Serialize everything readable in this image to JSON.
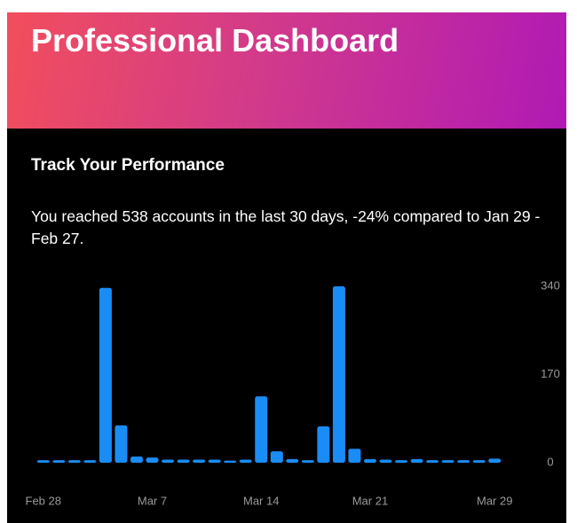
{
  "header": {
    "title": "Professional Dashboard"
  },
  "section": {
    "title": "Track Your Performance",
    "summary": "You reached 538 accounts in the last 30 days, -24% compared to Jan 29 - Feb 27."
  },
  "chart_data": {
    "type": "bar",
    "categories": [
      "Feb 28",
      null,
      null,
      null,
      null,
      null,
      null,
      "Mar 7",
      null,
      null,
      null,
      null,
      null,
      null,
      "Mar 14",
      null,
      null,
      null,
      null,
      null,
      null,
      "Mar 21",
      null,
      null,
      null,
      null,
      null,
      null,
      null,
      "Mar 29"
    ],
    "values": [
      5,
      5,
      5,
      5,
      337,
      72,
      12,
      10,
      6,
      6,
      6,
      6,
      4,
      6,
      128,
      22,
      7,
      5,
      70,
      340,
      27,
      7,
      6,
      5,
      7,
      5,
      5,
      5,
      5,
      8
    ],
    "color": "#1a8cf5",
    "ylim": [
      0,
      340
    ],
    "yticks": [
      0,
      170,
      340
    ]
  }
}
